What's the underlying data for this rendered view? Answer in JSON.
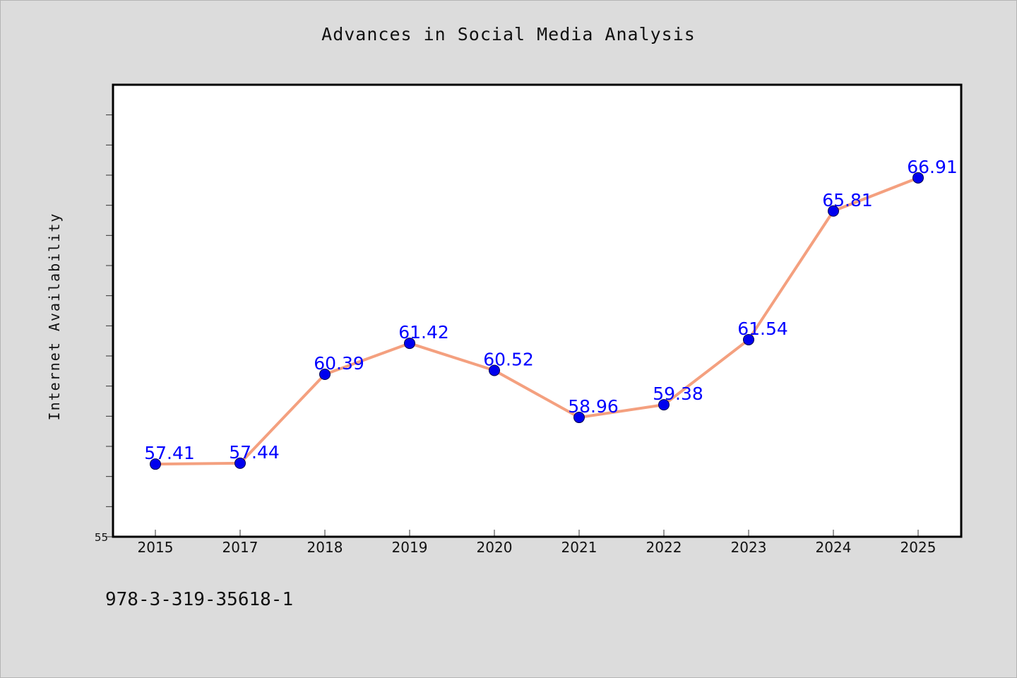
{
  "colors": {
    "background": "#dcdcdc",
    "plot_background": "#ffffff",
    "line": "#f4a07f",
    "marker": "#0000ee",
    "data_label": "#0000ff"
  },
  "footnote": "978-3-319-35618-1",
  "chart_data": {
    "type": "line",
    "title": "Advances in Social Media Analysis",
    "xlabel": "",
    "ylabel": "Internet Availability",
    "categories": [
      "2015",
      "2017",
      "2018",
      "2019",
      "2020",
      "2021",
      "2022",
      "2023",
      "2024",
      "2025"
    ],
    "series": [
      {
        "values": [
          57.41,
          57.44,
          60.39,
          61.42,
          60.52,
          58.96,
          59.38,
          61.54,
          65.81,
          66.91
        ],
        "labels": [
          "57.41",
          "57.44",
          "60.39",
          "61.42",
          "60.52",
          "58.96",
          "59.38",
          "61.54",
          "65.81",
          "66.91"
        ]
      }
    ],
    "ylim": [
      55,
      70
    ],
    "y_tick_step": 1,
    "y_tick_labels": [
      "55"
    ],
    "grid": false,
    "legend": "none"
  }
}
